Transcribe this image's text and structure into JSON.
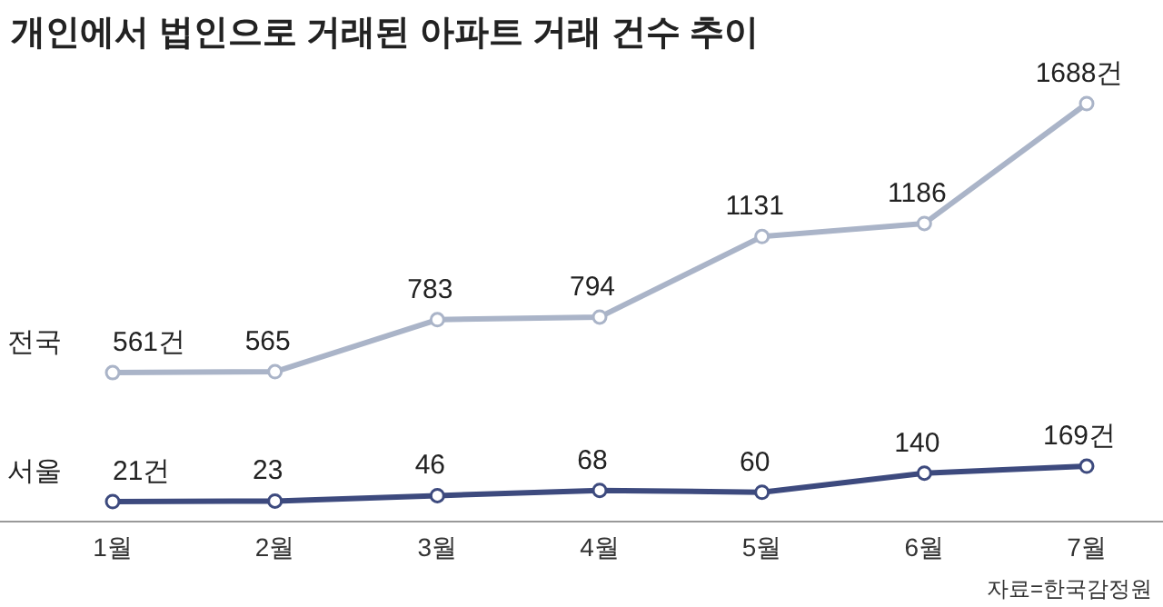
{
  "chart_data": {
    "type": "line",
    "title": "개인에서 법인으로 거래된 아파트 거래 건수 추이",
    "categories": [
      "1월",
      "2월",
      "3월",
      "4월",
      "5월",
      "6월",
      "7월"
    ],
    "marker": "circle",
    "legend": false,
    "series": [
      {
        "name": "전국",
        "color": "#aab4c8",
        "values": [
          561,
          565,
          783,
          794,
          1131,
          1186,
          1688
        ],
        "value_labels": [
          "561건",
          "565",
          "783",
          "794",
          "1131",
          "1186",
          "1688건"
        ]
      },
      {
        "name": "서울",
        "color": "#3d4a7e",
        "values": [
          21,
          23,
          46,
          68,
          60,
          140,
          169
        ],
        "value_labels": [
          "21건",
          "23",
          "46",
          "68",
          "60",
          "140",
          "169건"
        ]
      }
    ],
    "annotations": [
      "자료=한국감정원"
    ]
  }
}
